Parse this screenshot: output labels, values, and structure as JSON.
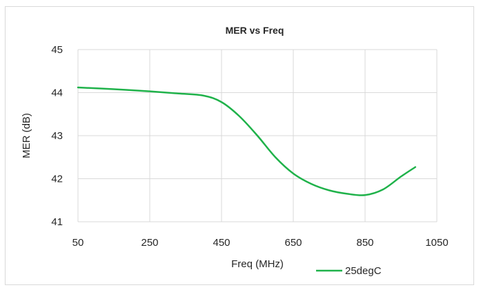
{
  "chart_data": {
    "type": "line",
    "title": "MER vs Freq",
    "xlabel": "Freq (MHz)",
    "ylabel": "MER (dB)",
    "xlim": [
      50,
      1050
    ],
    "ylim": [
      41,
      45
    ],
    "x_ticks": [
      50,
      250,
      450,
      650,
      850,
      1050
    ],
    "y_ticks": [
      41,
      42,
      43,
      44,
      45
    ],
    "grid": true,
    "legend_position": "bottom-right",
    "series": [
      {
        "name": "25degC",
        "color": "#1fb24a",
        "x": [
          50,
          150,
          250,
          330,
          400,
          450,
          500,
          550,
          600,
          650,
          700,
          750,
          800,
          850,
          900,
          950,
          990
        ],
        "y": [
          44.12,
          44.08,
          44.03,
          43.98,
          43.93,
          43.78,
          43.45,
          43.0,
          42.5,
          42.12,
          41.88,
          41.73,
          41.65,
          41.62,
          41.75,
          42.05,
          42.27
        ]
      }
    ]
  }
}
